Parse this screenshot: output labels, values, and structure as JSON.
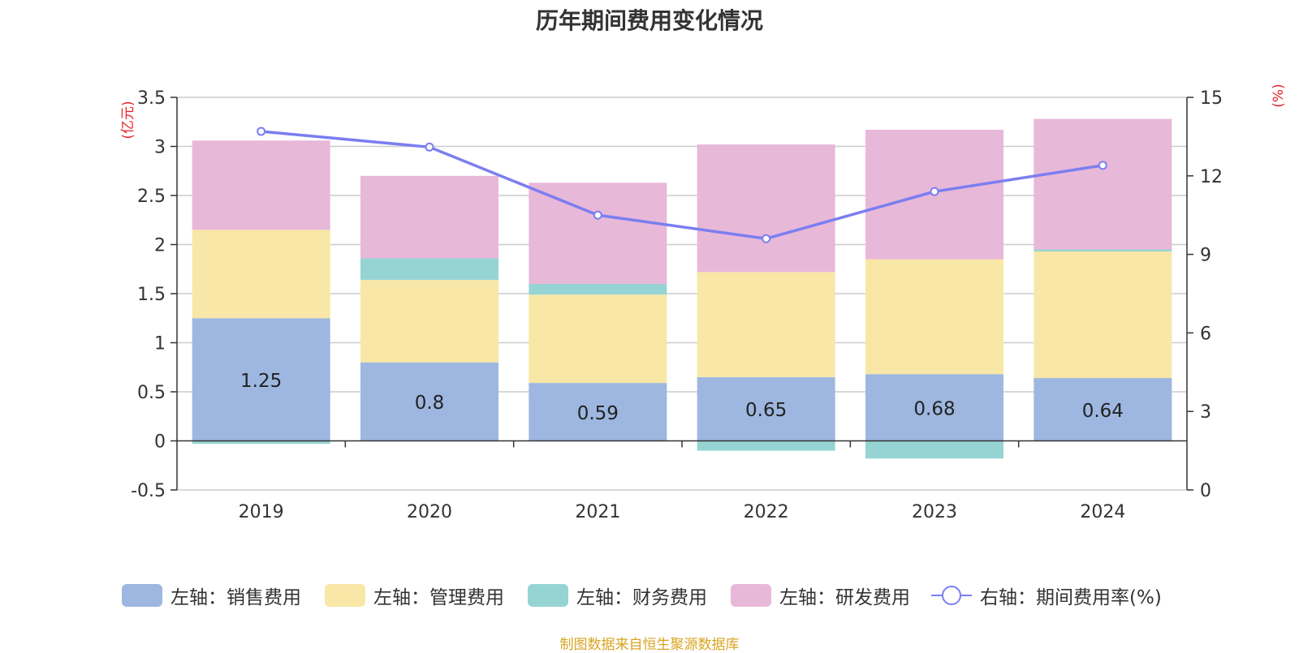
{
  "chart_data": {
    "type": "bar",
    "title": "历年期间费用变化情况",
    "categories": [
      "2019",
      "2020",
      "2021",
      "2022",
      "2023",
      "2024"
    ],
    "series": [
      {
        "name": "左轴：销售费用",
        "axis": "left",
        "stack": "total",
        "color": "#9db7e0",
        "values": [
          1.25,
          0.8,
          0.59,
          0.65,
          0.68,
          0.64
        ],
        "show_labels": true
      },
      {
        "name": "左轴：管理费用",
        "axis": "left",
        "stack": "total",
        "color": "#f8e7a6",
        "values": [
          0.9,
          0.84,
          0.9,
          1.07,
          1.17,
          1.29
        ]
      },
      {
        "name": "左轴：财务费用",
        "axis": "left",
        "stack": "total",
        "color": "#96d4d4",
        "values": [
          -0.03,
          0.22,
          0.11,
          -0.1,
          -0.18,
          0.02
        ]
      },
      {
        "name": "左轴：研发费用",
        "axis": "left",
        "stack": "total",
        "color": "#e8b8d9",
        "values": [
          0.91,
          0.84,
          1.03,
          1.3,
          1.32,
          1.33
        ]
      },
      {
        "name": "右轴：期间费用率(%)",
        "axis": "right",
        "type": "line",
        "color": "#7b7ef0",
        "values": [
          13.7,
          13.1,
          10.5,
          9.6,
          11.4,
          12.4
        ]
      }
    ],
    "left_axis": {
      "unit": "(亿元)",
      "ylim": [
        -0.5,
        3.5
      ],
      "ticks": [
        "-0.5",
        "0",
        "0.5",
        "1",
        "1.5",
        "2",
        "2.5",
        "3",
        "3.5"
      ]
    },
    "right_axis": {
      "unit": "(%)",
      "ylim": [
        0,
        15
      ],
      "ticks": [
        "0",
        "3",
        "6",
        "9",
        "12",
        "15"
      ]
    },
    "grid": true,
    "legend_position": "bottom"
  },
  "source": "制图数据来自恒生聚源数据库"
}
